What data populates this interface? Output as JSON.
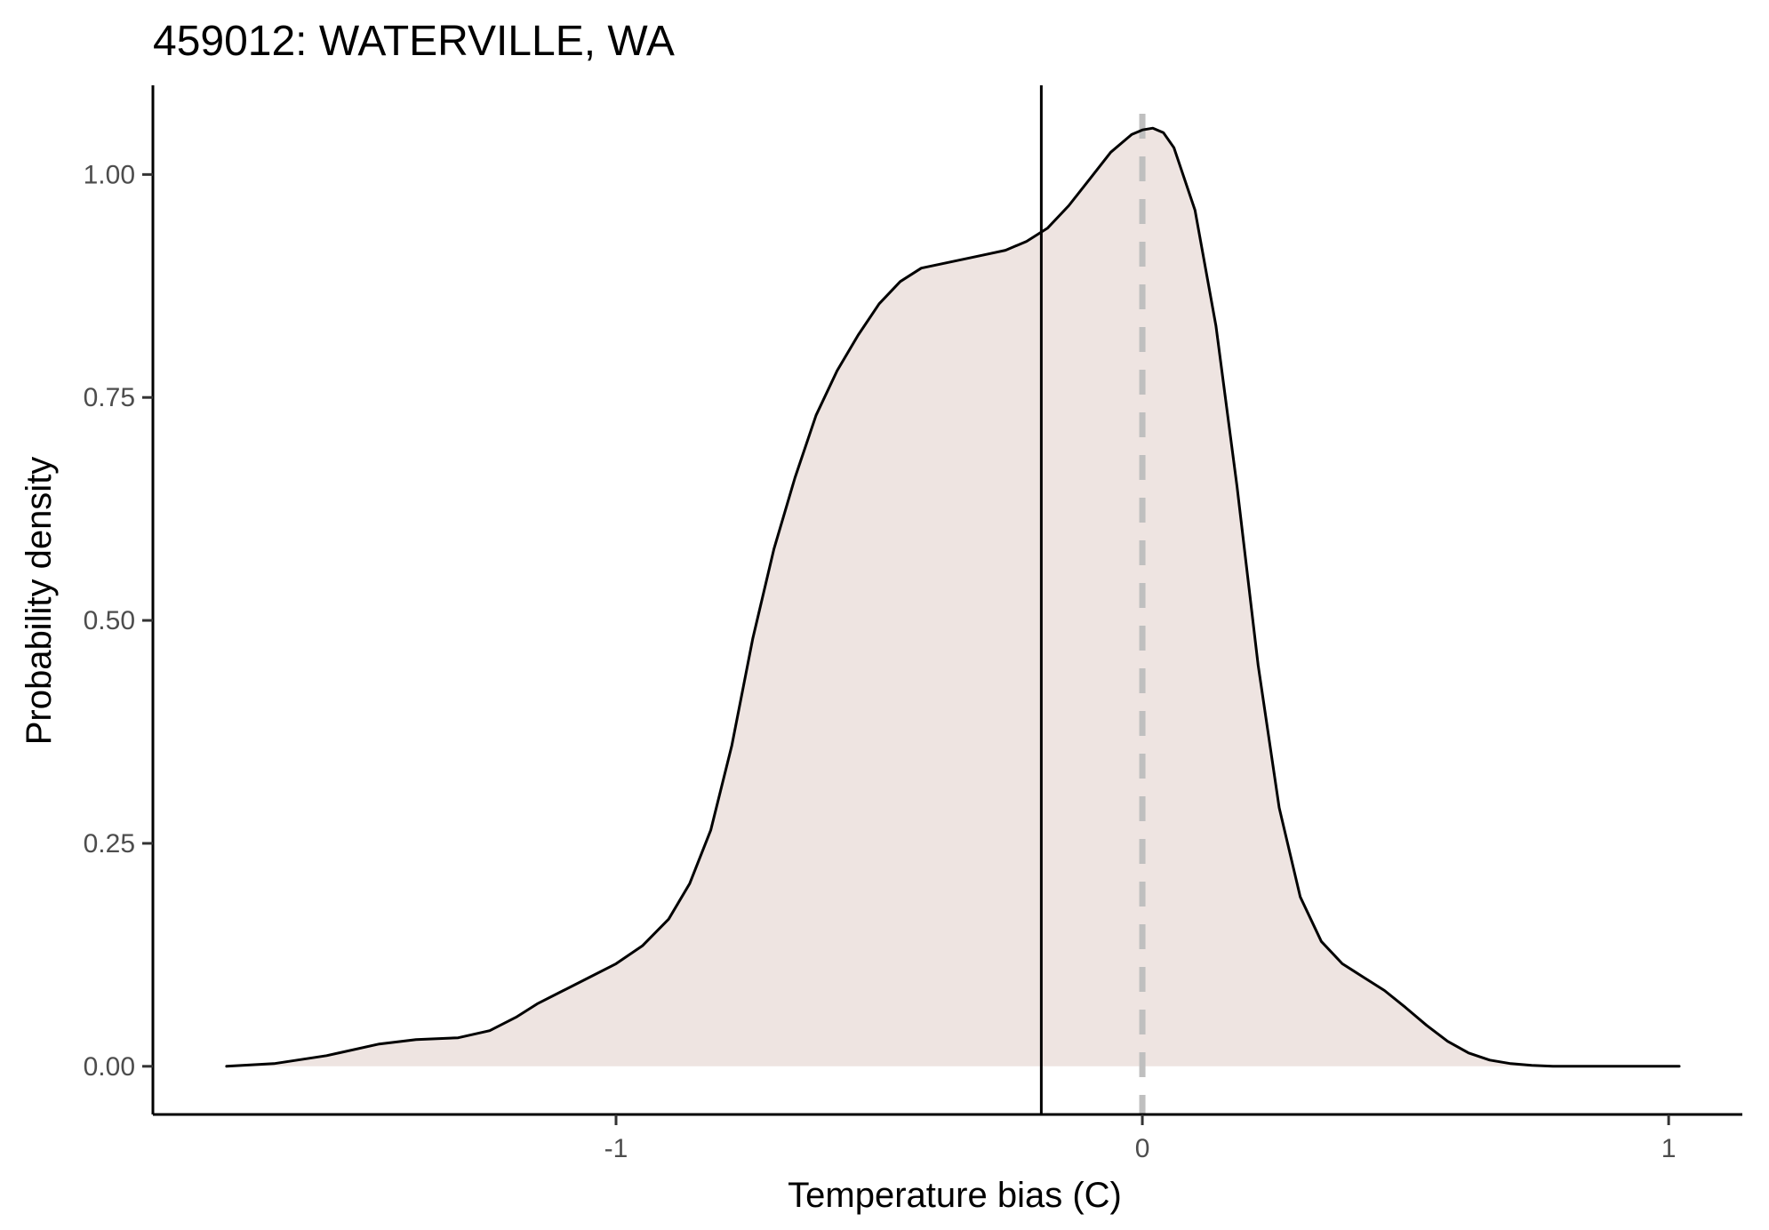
{
  "chart_data": {
    "type": "area",
    "title": "459012: WATERVILLE, WA",
    "xlabel": "Temperature bias (C)",
    "ylabel": "Probability density",
    "xlim": [
      -1.88,
      1.14
    ],
    "ylim": [
      -0.054,
      1.1
    ],
    "x_ticks": [
      -1,
      0,
      1
    ],
    "x_tick_labels": [
      "-1",
      "0",
      "1"
    ],
    "y_ticks": [
      0,
      0.25,
      0.5,
      0.75,
      1.0
    ],
    "y_tick_labels": [
      "0.00",
      "0.25",
      "0.50",
      "0.75",
      "1.00"
    ],
    "grid": false,
    "legend": "none",
    "fill_color": "#eee4e1",
    "line_color": "#000000",
    "vline_mean": {
      "x": -0.192,
      "color": "#000000",
      "style": "solid"
    },
    "vline_zero": {
      "x": 0,
      "color": "#bfbfbf",
      "style": "dashed"
    },
    "series": [
      {
        "x": [
          -1.74,
          -1.65,
          -1.55,
          -1.45,
          -1.38,
          -1.3,
          -1.24,
          -1.19,
          -1.15,
          -1.1,
          -1.05,
          -1.0,
          -0.95,
          -0.9,
          -0.86,
          -0.82,
          -0.78,
          -0.74,
          -0.7,
          -0.66,
          -0.62,
          -0.58,
          -0.54,
          -0.5,
          -0.46,
          -0.42,
          -0.38,
          -0.34,
          -0.3,
          -0.26,
          -0.22,
          -0.18,
          -0.14,
          -0.1,
          -0.06,
          -0.02,
          0.0,
          0.02,
          0.04,
          0.06,
          0.1,
          0.14,
          0.18,
          0.22,
          0.26,
          0.3,
          0.34,
          0.38,
          0.42,
          0.46,
          0.5,
          0.54,
          0.58,
          0.62,
          0.66,
          0.7,
          0.74,
          0.78,
          0.82,
          0.86,
          0.9,
          0.95,
          1.02
        ],
        "y": [
          0.0,
          0.003,
          0.012,
          0.025,
          0.03,
          0.032,
          0.04,
          0.055,
          0.07,
          0.085,
          0.1,
          0.115,
          0.135,
          0.165,
          0.205,
          0.265,
          0.36,
          0.48,
          0.58,
          0.66,
          0.73,
          0.78,
          0.82,
          0.855,
          0.88,
          0.895,
          0.9,
          0.905,
          0.91,
          0.915,
          0.925,
          0.94,
          0.965,
          0.995,
          1.025,
          1.045,
          1.05,
          1.052,
          1.047,
          1.03,
          0.96,
          0.83,
          0.65,
          0.45,
          0.29,
          0.19,
          0.14,
          0.115,
          0.1,
          0.085,
          0.066,
          0.046,
          0.028,
          0.015,
          0.007,
          0.003,
          0.001,
          0.0,
          0.0,
          0.0,
          0.0,
          0.0,
          0.0
        ]
      }
    ]
  }
}
